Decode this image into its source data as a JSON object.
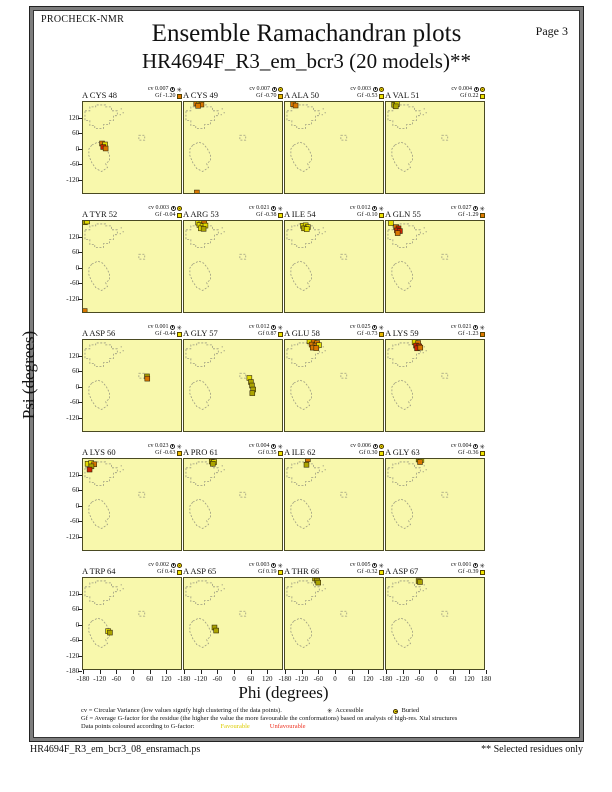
{
  "header": {
    "app": "PROCHECK-NMR",
    "page": "Page 3",
    "title": "Ensemble Ramachandran plots",
    "subtitle": "HR4694F_R3_em_bcr3 (20 models)**"
  },
  "labels": {
    "cv": "cv",
    "gf": "Gf"
  },
  "icons": {
    "accessible_glyph": "✳"
  },
  "colors": {
    "panel_bg": "#F8F8AC",
    "point_colors": {
      "y": "#E2DC00",
      "d": "#ABA400",
      "o": "#D97700",
      "r": "#CC2200"
    },
    "gf_yellow": "#EFE400",
    "gf_amber": "#E9B800",
    "gf_orange": "#E07800"
  },
  "legend": {
    "line1": "cv = Circular Variance (low values signify high clustering of the data points).",
    "accessible_label": "Accessible",
    "buried_label": "Buried",
    "line2": "Gf = Average G-factor for the residue (the higher the value the more favourable the conformations) based on analysis of high-res. Xtal structures",
    "line3": "Data points coloured according to G-factor:",
    "favourable_label": "Favourable",
    "unfavourable_label": "Unfavourable",
    "favourable_color": "#DDCC00",
    "unfavourable_color": "#EE3322"
  },
  "footer": {
    "filename": "HR4694F_R3_em_bcr3_08_ensramach.ps",
    "note": "** Selected residues only"
  },
  "chart_data": {
    "type": "scatter",
    "xlabel": "Phi (degrees)",
    "ylabel": "Psi (degrees)",
    "xlim": [
      -180,
      180
    ],
    "ylim": [
      -180,
      180
    ],
    "x_ticks": [
      -180,
      -120,
      -60,
      0,
      60,
      120,
      180
    ],
    "y_ticks": [
      120,
      60,
      0,
      -60,
      -120
    ],
    "y_bottom_tick": -180,
    "grid": false,
    "legend_position": "bottom",
    "panels": [
      {
        "residue": "A CYS 48",
        "cv": "0.007",
        "gf": "-1.20",
        "gf_color": "#E07800",
        "exposure": "accessible",
        "points": [
          [
            -110,
            16,
            "o"
          ],
          [
            -99,
            12,
            "y"
          ],
          [
            -106,
            2,
            "r"
          ],
          [
            -97,
            -4,
            "o"
          ]
        ]
      },
      {
        "residue": "A CYS 49",
        "cv": "0.007",
        "gf": "-0.70",
        "gf_color": "#E9B800",
        "exposure": "buried",
        "points": [
          [
            -135,
            174,
            "o"
          ],
          [
            -124,
            177,
            "d"
          ],
          [
            -116,
            170,
            "o"
          ],
          [
            -128,
            165,
            "o"
          ],
          [
            -133,
            -178,
            "o"
          ]
        ]
      },
      {
        "residue": "A ALA 50",
        "cv": "0.003",
        "gf": "-0.53",
        "gf_color": "#EFE400",
        "exposure": "buried",
        "points": [
          [
            -150,
            171,
            "o"
          ],
          [
            -141,
            166,
            "o"
          ]
        ]
      },
      {
        "residue": "A VAL 51",
        "cv": "0.004",
        "gf": "0.22",
        "gf_color": "#EFE400",
        "exposure": "buried",
        "points": [
          [
            -150,
            169,
            "d"
          ],
          [
            -140,
            171,
            "y"
          ],
          [
            -144,
            163,
            "d"
          ]
        ]
      },
      {
        "residue": "A TYR 52",
        "cv": "0.003",
        "gf": "-0.04",
        "gf_color": "#EFE400",
        "exposure": "buried",
        "points": [
          [
            -173,
            175,
            "d"
          ],
          [
            -165,
            178,
            "y"
          ],
          [
            -174,
            -176,
            "o"
          ]
        ]
      },
      {
        "residue": "A ARG 53",
        "cv": "0.021",
        "gf": "-0.38",
        "gf_color": "#EFE400",
        "exposure": "accessible",
        "points": [
          [
            -128,
            174,
            "y"
          ],
          [
            -116,
            176,
            "y"
          ],
          [
            -106,
            171,
            "o"
          ],
          [
            -123,
            164,
            "y"
          ],
          [
            -112,
            160,
            "y"
          ],
          [
            -101,
            162,
            "y"
          ],
          [
            -118,
            151,
            "y"
          ],
          [
            -108,
            149,
            "d"
          ]
        ]
      },
      {
        "residue": "A ILE 54",
        "cv": "0.012",
        "gf": "-0.10",
        "gf_color": "#EFE400",
        "exposure": "accessible",
        "points": [
          [
            -114,
            161,
            "y"
          ],
          [
            -104,
            163,
            "y"
          ],
          [
            -96,
            156,
            "y"
          ],
          [
            -110,
            151,
            "d"
          ],
          [
            -100,
            148,
            "y"
          ]
        ]
      },
      {
        "residue": "A GLN 55",
        "cv": "0.027",
        "gf": "-1.29",
        "gf_color": "#E07800",
        "exposure": "accessible",
        "points": [
          [
            -162,
            172,
            "y"
          ],
          [
            -143,
            156,
            "o"
          ],
          [
            -134,
            151,
            "r"
          ],
          [
            -140,
            143,
            "r"
          ],
          [
            -129,
            140,
            "r"
          ],
          [
            -137,
            132,
            "o"
          ]
        ]
      },
      {
        "residue": "A ASP 56",
        "cv": "0.001",
        "gf": "-0.44",
        "gf_color": "#EFE400",
        "exposure": "accessible",
        "points": [
          [
            55,
            36,
            "d"
          ],
          [
            56,
            27,
            "o"
          ]
        ]
      },
      {
        "residue": "A GLY 57",
        "cv": "0.012",
        "gf": "0.87",
        "gf_color": "#EFE400",
        "exposure": "accessible",
        "points": [
          [
            60,
            30,
            "y"
          ],
          [
            66,
            14,
            "d"
          ],
          [
            70,
            0,
            "d"
          ],
          [
            74,
            -16,
            "d"
          ],
          [
            71,
            -30,
            "d"
          ]
        ]
      },
      {
        "residue": "A GLU 58",
        "cv": "0.025",
        "gf": "-0.73",
        "gf_color": "#E9B800",
        "exposure": "accessible",
        "points": [
          [
            -90,
            175,
            "y"
          ],
          [
            -75,
            172,
            "o"
          ],
          [
            -62,
            168,
            "o"
          ],
          [
            -82,
            162,
            "o"
          ],
          [
            -68,
            158,
            "o"
          ],
          [
            -55,
            160,
            "y"
          ],
          [
            -78,
            150,
            "o"
          ],
          [
            -65,
            148,
            "o"
          ]
        ]
      },
      {
        "residue": "A LYS 59",
        "cv": "0.021",
        "gf": "-1.23",
        "gf_color": "#E07800",
        "exposure": "accessible",
        "points": [
          [
            -75,
            172,
            "y"
          ],
          [
            -62,
            168,
            "o"
          ],
          [
            -70,
            158,
            "r"
          ],
          [
            -58,
            155,
            "r"
          ],
          [
            -66,
            147,
            "r"
          ],
          [
            -54,
            150,
            "o"
          ]
        ]
      },
      {
        "residue": "A LYS 60",
        "cv": "0.023",
        "gf": "-0.63",
        "gf_color": "#E9B800",
        "exposure": "accessible",
        "points": [
          [
            -163,
            161,
            "y"
          ],
          [
            -150,
            164,
            "y"
          ],
          [
            -139,
            159,
            "o"
          ],
          [
            -149,
            151,
            "d"
          ],
          [
            -156,
            138,
            "r"
          ]
        ]
      },
      {
        "residue": "A PRO 61",
        "cv": "0.004",
        "gf": "0.35",
        "gf_color": "#EFE400",
        "exposure": "accessible",
        "points": [
          [
            -78,
            170,
            "d"
          ],
          [
            -69,
            168,
            "y"
          ],
          [
            -74,
            161,
            "d"
          ]
        ]
      },
      {
        "residue": "A ILE 62",
        "cv": "0.006",
        "gf": "0.30",
        "gf_color": "#EFE400",
        "exposure": "buried",
        "points": [
          [
            -96,
            179,
            "o"
          ],
          [
            -101,
            157,
            "d"
          ]
        ]
      },
      {
        "residue": "A GLY 63",
        "cv": "0.004",
        "gf": "-0.36",
        "gf_color": "#EFE400",
        "exposure": "accessible",
        "points": [
          [
            -60,
            178,
            "d"
          ],
          [
            -50,
            176,
            "y"
          ],
          [
            -55,
            168,
            "o"
          ]
        ]
      },
      {
        "residue": "A TRP 64",
        "cv": "0.002",
        "gf": "0.41",
        "gf_color": "#EFE400",
        "exposure": "buried",
        "points": [
          [
            -88,
            -30,
            "y"
          ],
          [
            -81,
            -36,
            "d"
          ]
        ]
      },
      {
        "residue": "A ASP 65",
        "cv": "0.003",
        "gf": "0.19",
        "gf_color": "#EFE400",
        "exposure": "accessible",
        "points": [
          [
            -68,
            -16,
            "d"
          ],
          [
            -62,
            -28,
            "d"
          ]
        ]
      },
      {
        "residue": "A THR 66",
        "cv": "0.005",
        "gf": "-0.32",
        "gf_color": "#EFE400",
        "exposure": "accessible",
        "points": [
          [
            -70,
            178,
            "d"
          ],
          [
            -62,
            170,
            "d"
          ],
          [
            -58,
            162,
            "d"
          ]
        ]
      },
      {
        "residue": "A ASP 67",
        "cv": "0.001",
        "gf": "-0.39",
        "gf_color": "#EFE400",
        "exposure": "accessible",
        "points": [
          [
            -60,
            168,
            "d"
          ],
          [
            -55,
            164,
            "d"
          ]
        ]
      }
    ]
  }
}
